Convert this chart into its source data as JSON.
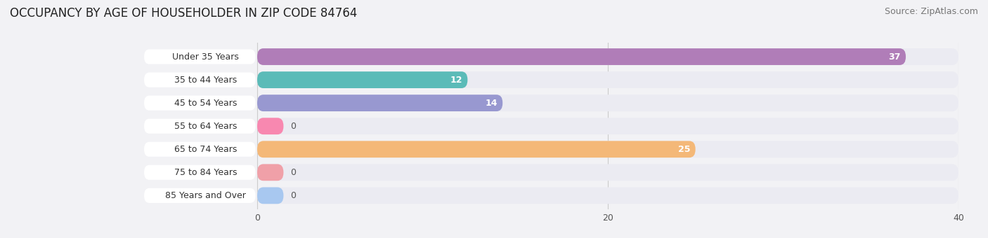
{
  "title": "OCCUPANCY BY AGE OF HOUSEHOLDER IN ZIP CODE 84764",
  "source": "Source: ZipAtlas.com",
  "categories": [
    "Under 35 Years",
    "35 to 44 Years",
    "45 to 54 Years",
    "55 to 64 Years",
    "65 to 74 Years",
    "75 to 84 Years",
    "85 Years and Over"
  ],
  "values": [
    37,
    12,
    14,
    0,
    25,
    0,
    0
  ],
  "bar_colors": [
    "#b07db8",
    "#5bbbb8",
    "#9898d0",
    "#f888b0",
    "#f4b878",
    "#f0a0a8",
    "#a8c8f0"
  ],
  "bg_color": "#f2f2f5",
  "bar_bg_color": "#ebebf2",
  "label_bg_color": "#ffffff",
  "xlim_data": [
    0,
    40
  ],
  "x_label_end": 6.5,
  "xticks": [
    0,
    20,
    40
  ],
  "title_fontsize": 12,
  "source_fontsize": 9,
  "label_fontsize": 9,
  "value_fontsize": 9
}
